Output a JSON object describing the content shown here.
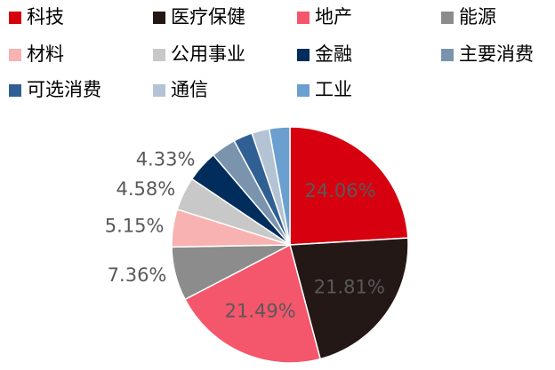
{
  "chart_data": {
    "type": "pie",
    "categories": [
      "科技",
      "医疗保健",
      "地产",
      "能源",
      "材料",
      "公用事业",
      "金融",
      "主要消费",
      "可选消费",
      "通信",
      "工业"
    ],
    "values": [
      24.06,
      21.81,
      21.49,
      7.36,
      5.15,
      4.58,
      4.33,
      3.4,
      2.6,
      2.4,
      2.82
    ],
    "value_labels": [
      "24.06%",
      "21.81%",
      "21.49%",
      "7.36%",
      "5.15%",
      "4.58%",
      "4.33%",
      null,
      null,
      null,
      null
    ],
    "colors": [
      "#d7000f",
      "#231815",
      "#f4566b",
      "#8c8c8c",
      "#f9b2b2",
      "#c8c8c8",
      "#002d5c",
      "#7a94ae",
      "#2f5f93",
      "#b4c3d4",
      "#6a9fd0"
    ]
  }
}
